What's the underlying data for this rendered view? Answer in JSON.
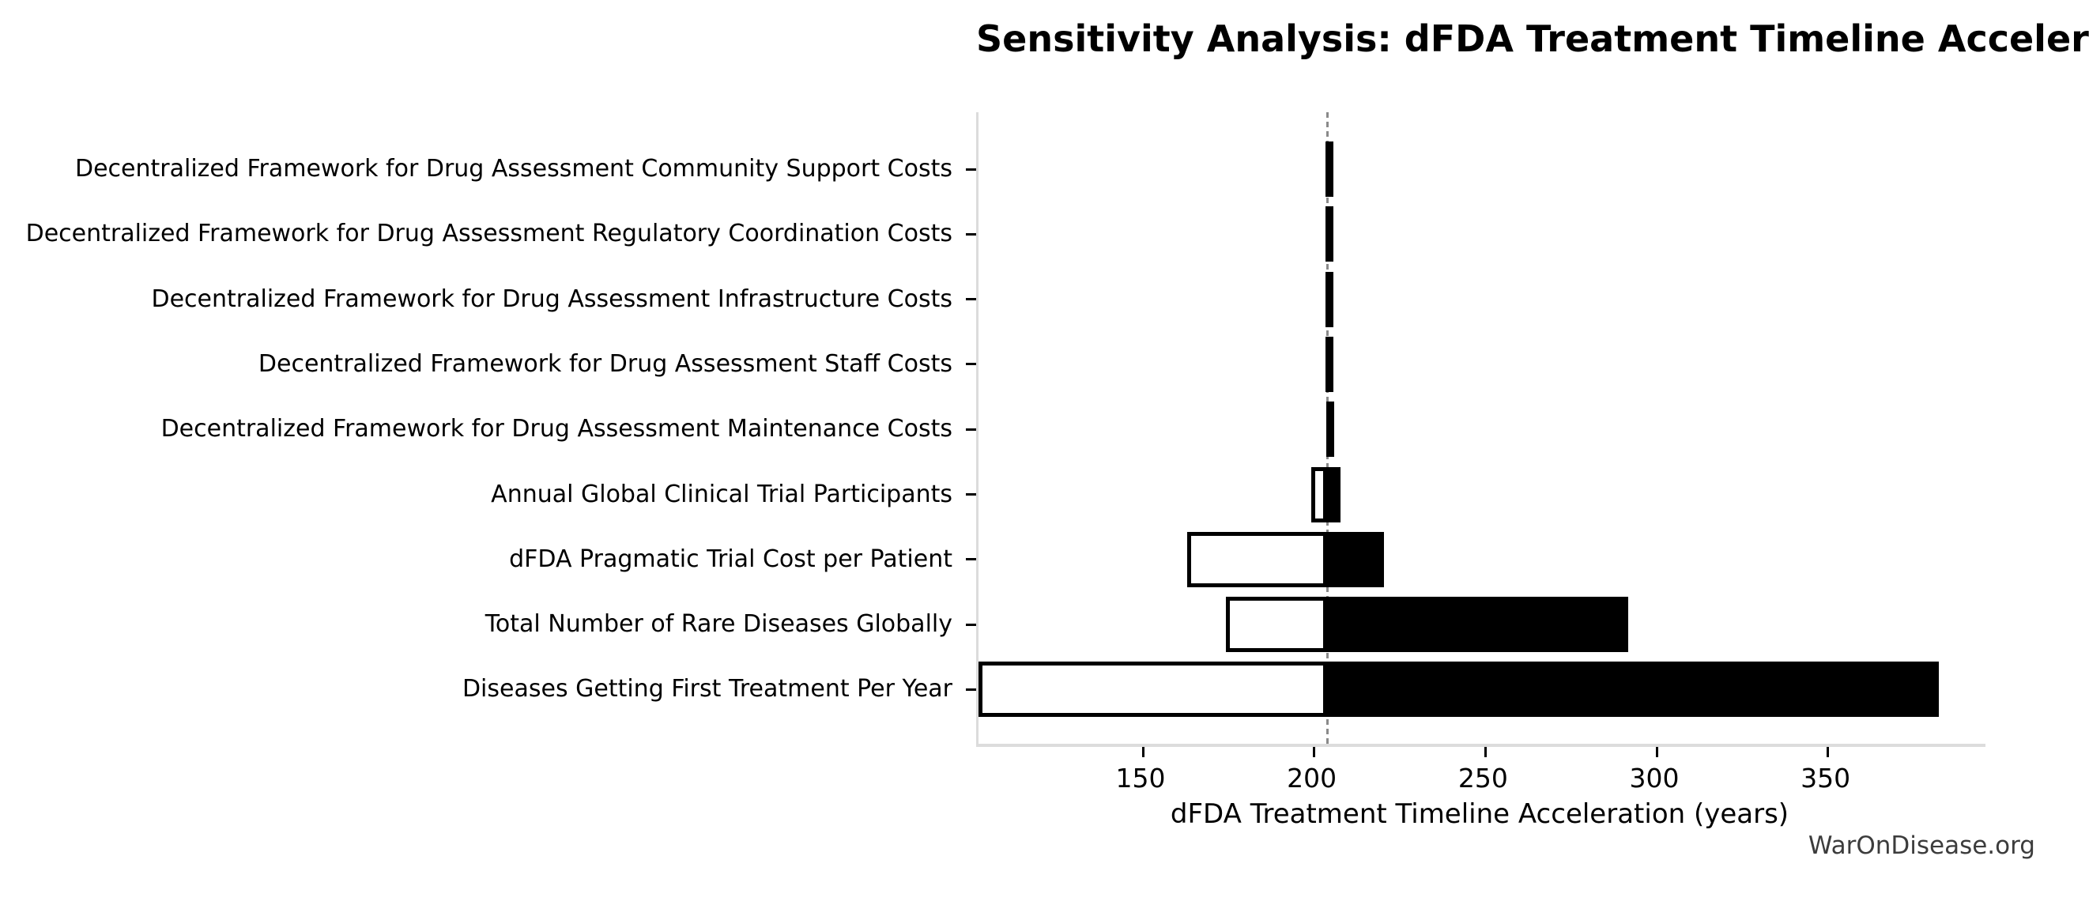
{
  "page": {
    "background": "#ffffff"
  },
  "watermark": {
    "text": "WarOnDisease.org",
    "color": "#3c3c3c"
  },
  "chart_data": {
    "type": "bar",
    "subtype": "tornado-horizontal",
    "title": "Sensitivity Analysis: dFDA Treatment Timeline Acceleration",
    "xlabel": "dFDA Treatment Timeline Acceleration (years)",
    "ylabel": "",
    "xlim": [
      102,
      396
    ],
    "x_ticks": [
      150,
      200,
      250,
      300,
      350
    ],
    "baseline": 203.8,
    "baseline_style": {
      "color": "#8a8a8a",
      "dash": "dashed"
    },
    "colors": {
      "low_fill": "#ffffff",
      "low_edge": "#000000",
      "high_fill": "#000000",
      "spine": "#dcdcdc"
    },
    "legend": "none",
    "grid": "off",
    "rows": [
      {
        "label": "Decentralized Framework for Drug Assessment Community Support Costs",
        "low": 203.4,
        "high": 204.3
      },
      {
        "label": "Decentralized Framework for Drug Assessment Regulatory Coordination Costs",
        "low": 203.4,
        "high": 204.3
      },
      {
        "label": "Decentralized Framework for Drug Assessment Infrastructure Costs",
        "low": 203.4,
        "high": 204.3
      },
      {
        "label": "Decentralized Framework for Drug Assessment Staff Costs",
        "low": 203.4,
        "high": 204.2
      },
      {
        "label": "Decentralized Framework for Drug Assessment Maintenance Costs",
        "low": 203.5,
        "high": 204.2
      },
      {
        "label": "Annual Global Clinical Trial Participants",
        "low": 199.2,
        "high": 207.8
      },
      {
        "label": "dFDA Pragmatic Trial Cost per Patient",
        "low": 163.0,
        "high": 220.3
      },
      {
        "label": "Total Number of Rare Diseases Globally",
        "low": 174.2,
        "high": 291.6
      },
      {
        "label": "Diseases Getting First Treatment Per Year",
        "low": 102.0,
        "high": 382.5
      }
    ]
  }
}
